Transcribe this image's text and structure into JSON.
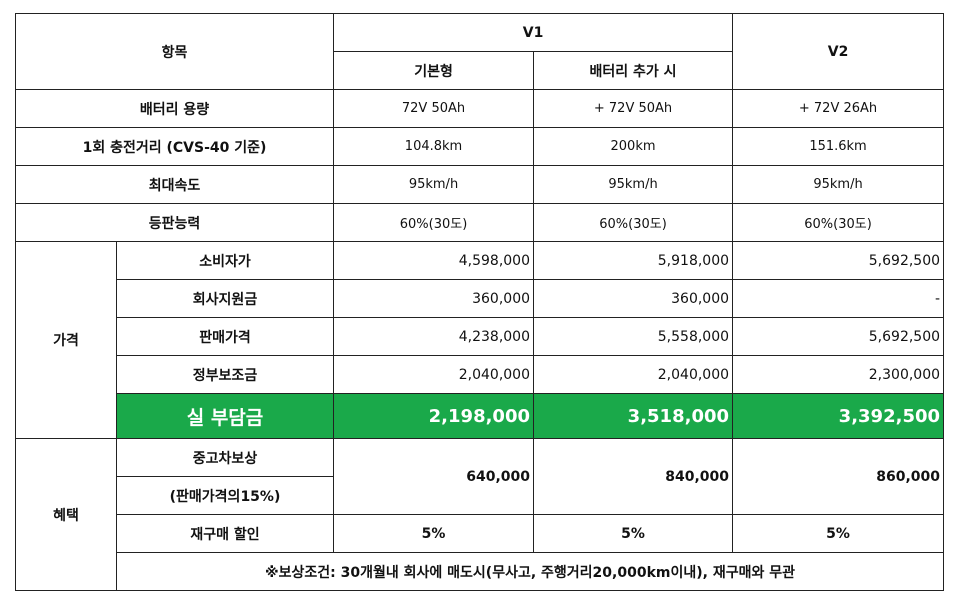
{
  "header": {
    "item": "항목",
    "v1": "V1",
    "v2": "V2",
    "v1_basic": "기본형",
    "v1_battery": "배터리 추가 시"
  },
  "specs": [
    {
      "label": "배터리 용량",
      "basic": "72V 50Ah",
      "battery": "+ 72V 50Ah",
      "v2": "+ 72V 26Ah"
    },
    {
      "label": "1회 충전거리 (CVS-40 기준)",
      "basic": "104.8km",
      "battery": "200km",
      "v2": "151.6km"
    },
    {
      "label": "최대속도",
      "basic": "95km/h",
      "battery": "95km/h",
      "v2": "95km/h"
    },
    {
      "label": "등판능력",
      "basic": "60%(30도)",
      "battery": "60%(30도)",
      "v2": "60%(30도)"
    }
  ],
  "price": {
    "group": "가격",
    "rows": [
      {
        "label": "소비자가",
        "basic": "4,598,000",
        "battery": "5,918,000",
        "v2": "5,692,500"
      },
      {
        "label": "회사지원금",
        "basic": "360,000",
        "battery": "360,000",
        "v2": "-"
      },
      {
        "label": "판매가격",
        "basic": "4,238,000",
        "battery": "5,558,000",
        "v2": "5,692,500"
      },
      {
        "label": "정부보조금",
        "basic": "2,040,000",
        "battery": "2,040,000",
        "v2": "2,300,000"
      }
    ],
    "net": {
      "label": "실 부담금",
      "basic": "2,198,000",
      "battery": "3,518,000",
      "v2": "3,392,500",
      "color": "#1aa94a"
    }
  },
  "benefit": {
    "group": "혜택",
    "tradein_label": "중고차보상",
    "tradein_sub": "(판매가격의15%)",
    "tradein": {
      "basic": "640,000",
      "battery": "840,000",
      "v2": "860,000"
    },
    "rebuy_label": "재구매 할인",
    "rebuy": {
      "basic": "5%",
      "battery": "5%",
      "v2": "5%"
    },
    "note": "※보상조건: 30개월내 회사에 매도시(무사고, 주행거리20,000km이내), 재구매와 무관"
  }
}
